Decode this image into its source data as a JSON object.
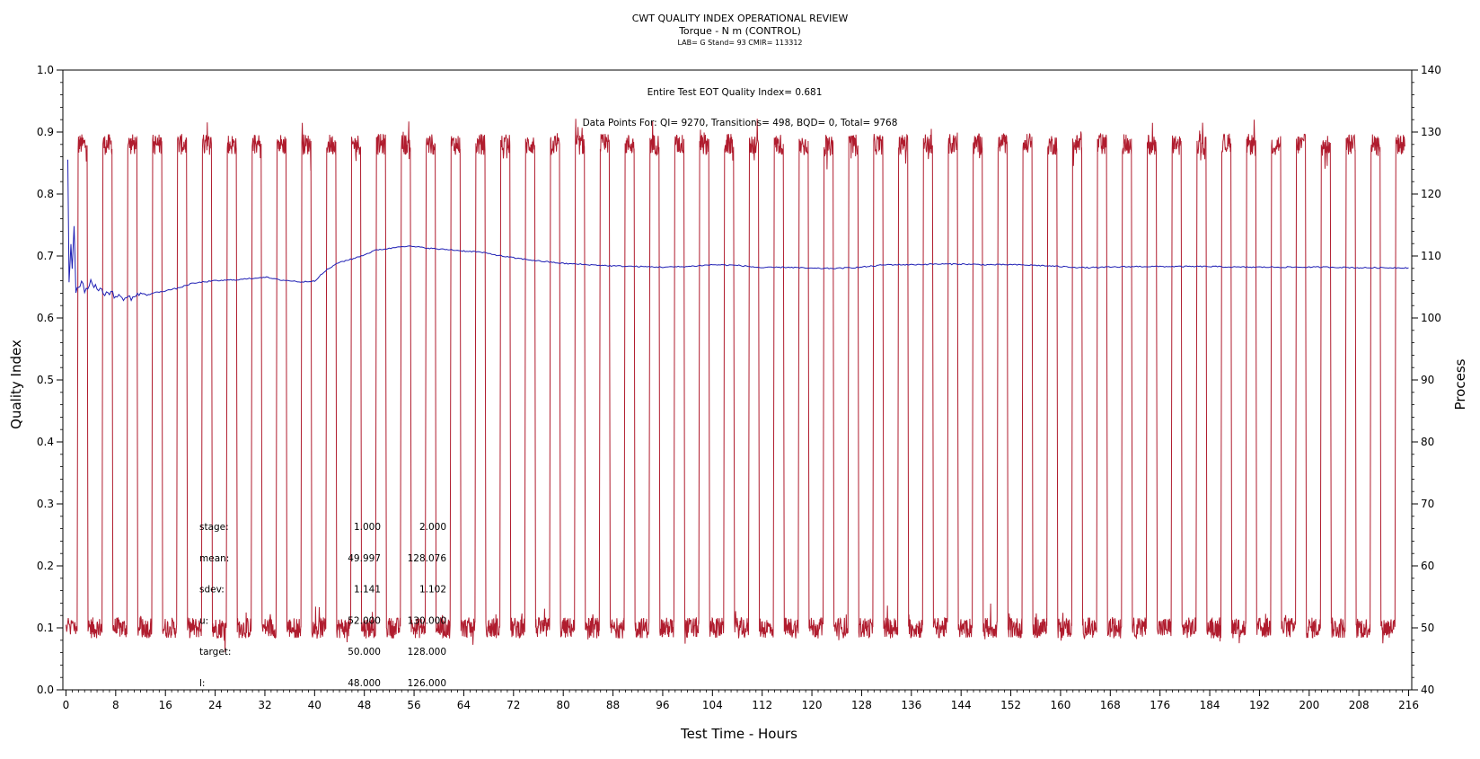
{
  "chart_data": {
    "type": "line",
    "title": "CWT QUALITY INDEX OPERATIONAL REVIEW",
    "subtitle": "Torque - N m (CONTROL)",
    "subsubtitle": "LAB= G Stand= 93 CMIR= 113312",
    "xlabel": "Test Time - Hours",
    "ylabel_left": "Quality Index",
    "ylabel_right": "Process",
    "xlim": [
      -0.5,
      216.5
    ],
    "ylim_left": [
      0.0,
      1.0
    ],
    "ylim_right": [
      40,
      140
    ],
    "x_ticks": [
      "0",
      "8",
      "16",
      "24",
      "32",
      "40",
      "48",
      "56",
      "64",
      "72",
      "80",
      "88",
      "96",
      "104",
      "112",
      "120",
      "128",
      "136",
      "144",
      "152",
      "160",
      "168",
      "176",
      "184",
      "192",
      "200",
      "208",
      "216"
    ],
    "y_left_ticks": [
      "0.0",
      "0.1",
      "0.2",
      "0.3",
      "0.4",
      "0.5",
      "0.6",
      "0.7",
      "0.8",
      "0.9",
      "1.0"
    ],
    "y_right_ticks": [
      "40",
      "50",
      "60",
      "70",
      "80",
      "90",
      "100",
      "110",
      "120",
      "130",
      "140"
    ],
    "grid": false,
    "annotations": [
      "Entire Test EOT Quality Index=   0.681",
      "Data Points For: QI=   9270, Transitions=     498, BQD=     0, Total=   9768"
    ],
    "stats_table": {
      "rows": [
        {
          "label": "stage:",
          "v1": "1.000",
          "v2": "2.000"
        },
        {
          "label": "mean:",
          "v1": "49.997",
          "v2": "128.076"
        },
        {
          "label": "sdev:",
          "v1": "1.141",
          "v2": "1.102"
        },
        {
          "label": "u:",
          "v1": "52.000",
          "v2": "130.000"
        },
        {
          "label": "target:",
          "v1": "50.000",
          "v2": "128.000"
        },
        {
          "label": "l:",
          "v1": "48.000",
          "v2": "126.000"
        }
      ]
    },
    "series": [
      {
        "axis": "left",
        "color": "#1f1fb4",
        "x": [
          0.3,
          0.5,
          0.8,
          1.0,
          1.3,
          1.6,
          2.0,
          2.5,
          3,
          3.5,
          4,
          5,
          6,
          7,
          8,
          9,
          10,
          11,
          12,
          13,
          14,
          15,
          16,
          18,
          20,
          22,
          24,
          26,
          28,
          30,
          32,
          34,
          36,
          38,
          40,
          42,
          44,
          46,
          48,
          50,
          52,
          54,
          56,
          58,
          60,
          62,
          64,
          66,
          68,
          70,
          72,
          76,
          80,
          84,
          88,
          92,
          96,
          100,
          104,
          108,
          112,
          116,
          120,
          124,
          128,
          132,
          136,
          140,
          144,
          148,
          152,
          156,
          160,
          164,
          168,
          172,
          176,
          180,
          184,
          188,
          192,
          196,
          200,
          204,
          208,
          212,
          216
        ],
        "values": [
          0.856,
          0.66,
          0.72,
          0.68,
          0.75,
          0.645,
          0.65,
          0.66,
          0.645,
          0.65,
          0.66,
          0.648,
          0.64,
          0.642,
          0.635,
          0.633,
          0.632,
          0.634,
          0.64,
          0.637,
          0.64,
          0.642,
          0.644,
          0.648,
          0.655,
          0.658,
          0.66,
          0.661,
          0.662,
          0.664,
          0.666,
          0.662,
          0.66,
          0.658,
          0.66,
          0.678,
          0.69,
          0.695,
          0.702,
          0.71,
          0.712,
          0.716,
          0.715,
          0.713,
          0.711,
          0.71,
          0.708,
          0.707,
          0.704,
          0.7,
          0.697,
          0.692,
          0.688,
          0.686,
          0.684,
          0.683,
          0.682,
          0.683,
          0.686,
          0.685,
          0.681,
          0.682,
          0.68,
          0.68,
          0.682,
          0.686,
          0.686,
          0.687,
          0.687,
          0.686,
          0.686,
          0.685,
          0.683,
          0.681,
          0.682,
          0.683,
          0.683,
          0.683,
          0.683,
          0.682,
          0.682,
          0.682,
          0.682,
          0.682,
          0.681,
          0.681,
          0.681
        ]
      },
      {
        "axis": "right",
        "color": "#b01c2e",
        "type": "step-cycle",
        "cycle_starts": [
          1.8,
          5.8,
          9.8,
          13.8,
          17.8,
          21.8,
          25.8,
          29.8,
          33.8,
          37.8,
          41.8,
          45.8,
          49.8,
          53.8,
          57.8,
          61.8,
          65.8,
          69.8,
          73.8,
          77.8,
          81.8,
          85.8,
          89.8,
          93.8,
          97.8,
          101.8,
          105.8,
          109.8,
          113.8,
          117.8,
          121.8,
          125.8,
          129.8,
          133.8,
          137.8,
          141.8,
          145.8,
          149.8,
          153.8,
          157.8,
          161.8,
          165.8,
          169.8,
          173.8,
          177.8,
          181.8,
          185.8,
          189.8,
          193.8,
          197.8,
          201.8,
          205.8,
          209.8,
          213.8
        ],
        "high_duration": 1.6,
        "low_value": 50,
        "high_value": 128
      }
    ]
  }
}
